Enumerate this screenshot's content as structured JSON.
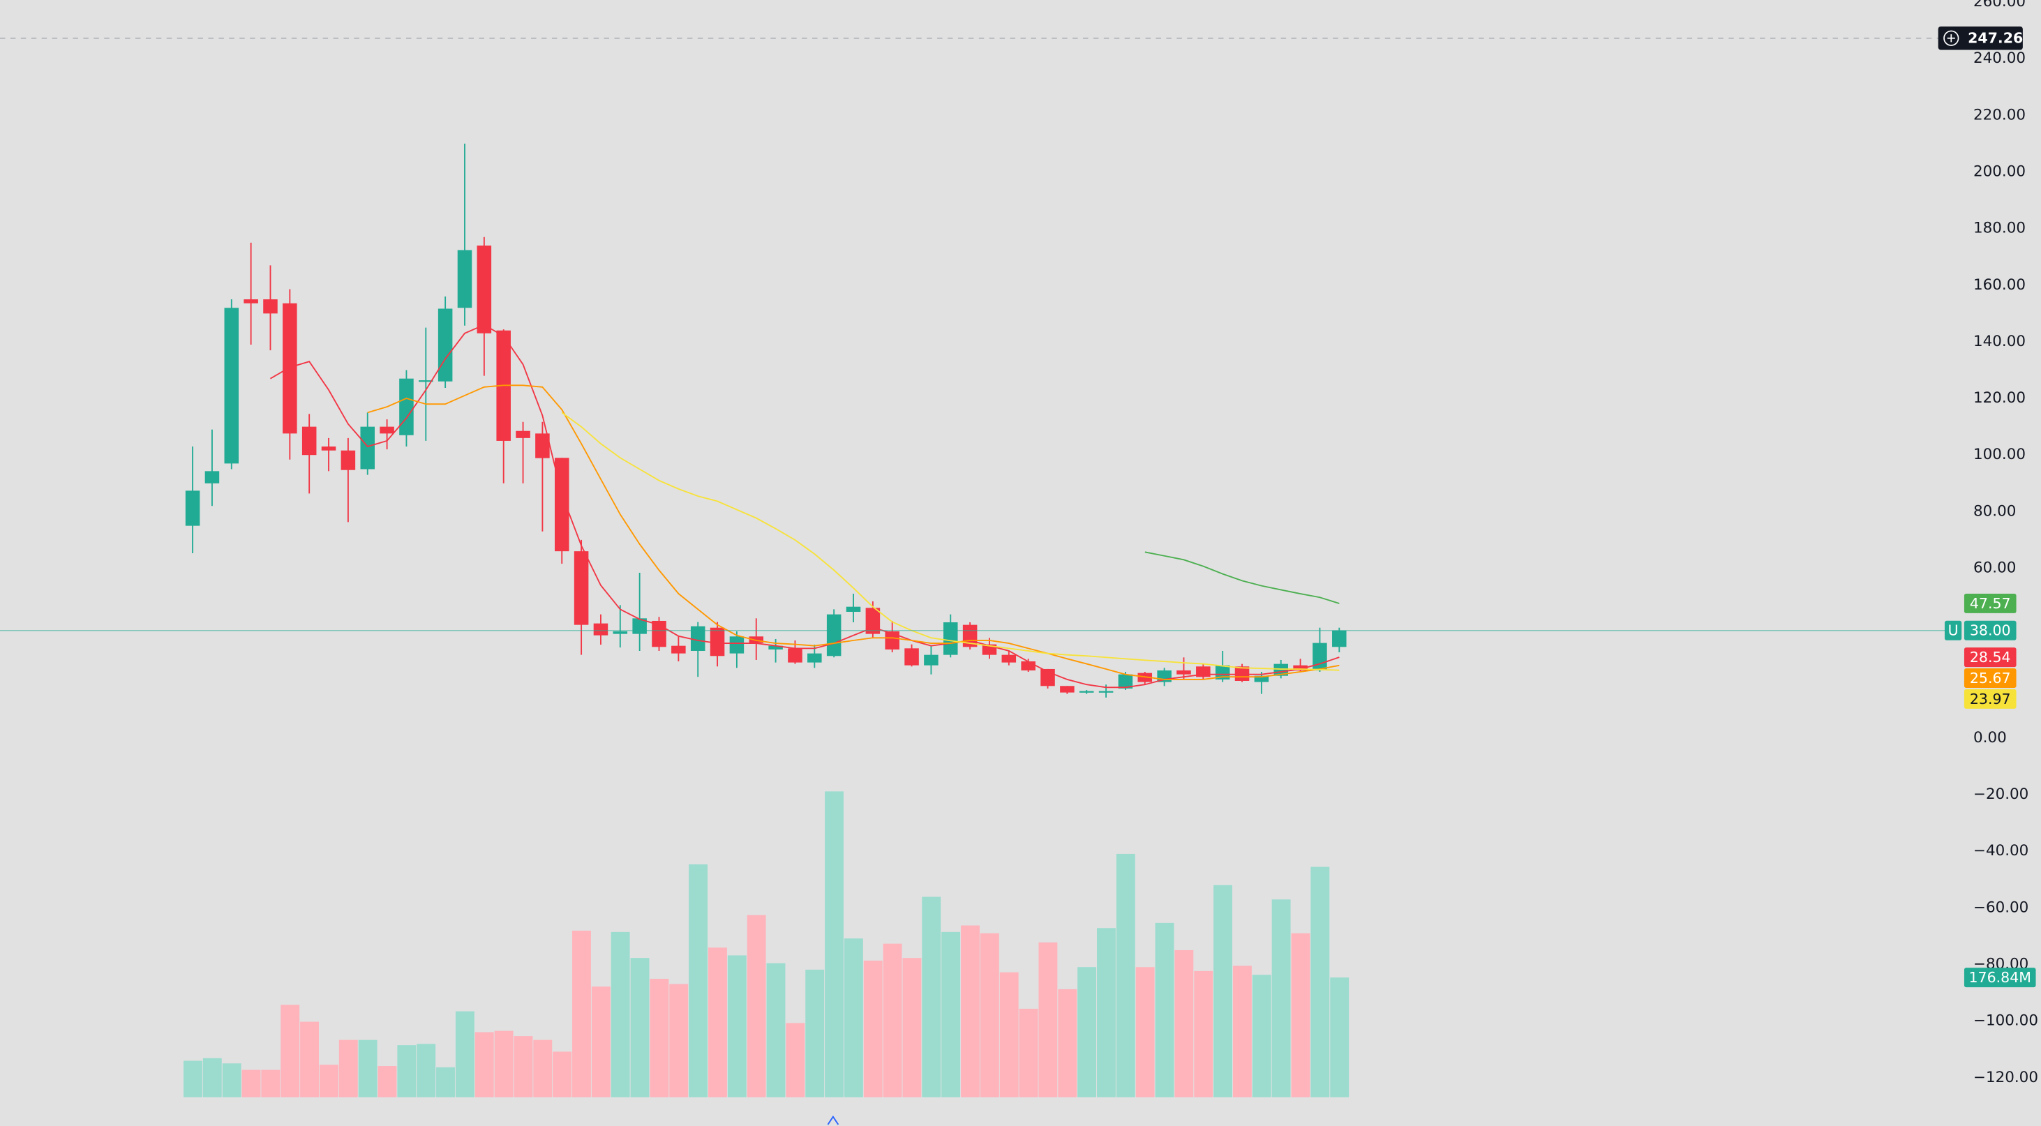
{
  "chart_data": {
    "type": "candlestick",
    "open": [
      75,
      90,
      97,
      155,
      155,
      153.6,
      110,
      103,
      101.6,
      95,
      110,
      107,
      126,
      126,
      152,
      174,
      144,
      108.5,
      107.6,
      99,
      66,
      40.5,
      36.8,
      36.8,
      41.4,
      32.6,
      30.8,
      39,
      29.9,
      35.9,
      31.3,
      31.7,
      26.7,
      29,
      44.6,
      46,
      37.7,
      31.7,
      25.7,
      29.4,
      40,
      33.1,
      29.4,
      27.1,
      24.4,
      18.4,
      16.1,
      16.1,
      17.5,
      23,
      19.8,
      23.9,
      25.3,
      20.7,
      25.3,
      19.8,
      22,
      25.7,
      23.9,
      32.2
    ],
    "high": [
      103,
      109,
      155,
      175,
      167,
      158.6,
      114.5,
      106,
      106,
      115,
      112.6,
      130,
      145,
      156,
      210,
      177,
      144.4,
      111.7,
      111.7,
      99,
      70,
      43.7,
      47,
      58.4,
      42.8,
      35.9,
      41,
      41,
      37.7,
      42.3,
      35,
      34.5,
      33,
      45.5,
      51,
      48.3,
      41.4,
      33.1,
      32.6,
      43.7,
      40.9,
      35.4,
      30.8,
      28,
      24.4,
      18.4,
      17,
      18.9,
      23.4,
      23.4,
      24.8,
      28.5,
      26.2,
      30.8,
      26.2,
      23.4,
      27.6,
      28,
      39,
      39
    ],
    "low": [
      65.3,
      82,
      95,
      139,
      137,
      98.4,
      86.4,
      94.3,
      76.3,
      93,
      102,
      103,
      105,
      123.7,
      145.7,
      128,
      90,
      90,
      73,
      61.6,
      29.4,
      33,
      32,
      30.8,
      30.8,
      27.1,
      21.6,
      25.3,
      24.8,
      27.6,
      26.7,
      26.2,
      24.8,
      28.5,
      40.9,
      35.4,
      30.3,
      25.3,
      22.5,
      28.5,
      31.3,
      28,
      25.7,
      23.4,
      17.5,
      15.6,
      15.6,
      14.3,
      17,
      18.9,
      18.4,
      20.7,
      20.7,
      19.8,
      19.8,
      15.6,
      21.1,
      23.4,
      23.4,
      30.3
    ],
    "close": [
      87.4,
      94.3,
      152,
      153.6,
      150,
      107.6,
      100,
      101.6,
      94.7,
      110,
      107.6,
      127,
      126.4,
      151.7,
      172.4,
      143,
      105,
      106,
      98.9,
      66,
      40,
      36.3,
      37.7,
      42.3,
      32.2,
      29.9,
      39.5,
      29,
      35.9,
      33.6,
      32.6,
      26.7,
      29.9,
      43.7,
      46.4,
      36.8,
      31.3,
      25.7,
      29.4,
      40.9,
      32.2,
      29.4,
      26.7,
      23.9,
      18.4,
      16.1,
      16.6,
      16.6,
      22.5,
      19.8,
      23.9,
      22.5,
      21.6,
      25.7,
      20.2,
      22,
      26.2,
      23.9,
      33.6,
      38
    ],
    "volume": [
      53.8,
      57.7,
      50,
      40.4,
      40.4,
      136.5,
      111.5,
      48,
      84.6,
      84.6,
      46.1,
      76.9,
      78.8,
      44.2,
      126.9,
      96.1,
      98,
      90.3,
      84.6,
      67.3,
      246,
      163.4,
      244.1,
      205.7,
      174.9,
      167.2,
      344,
      221,
      209.5,
      269,
      198,
      109.6,
      188.4,
      451.7,
      234.5,
      201.8,
      226.8,
      205.7,
      296,
      244.1,
      253.7,
      242.2,
      184.5,
      130.7,
      228.7,
      159.5,
      192.2,
      249.9,
      359.4,
      192.2,
      257.5,
      217.2,
      186.4,
      313.3,
      194.1,
      180.7,
      292.1,
      242.2,
      340.2,
      176.84
    ],
    "up_color": "#22ab94",
    "down_color": "#f23645",
    "volume_up_color": "#9bdccf",
    "volume_down_color": "#ffb3bb",
    "moving_averages": [
      {
        "color": "#f23645",
        "start": 4,
        "values": [
          127,
          131,
          133,
          123,
          111,
          103,
          105,
          113,
          123,
          134,
          143,
          146,
          142,
          132,
          114,
          86,
          68,
          54,
          45.5,
          42,
          40,
          36,
          34.5,
          33.5,
          33.5,
          33.5,
          32.6,
          31.7,
          31.7,
          33.5,
          36.3,
          39,
          37,
          34.5,
          32.6,
          33.5,
          34.5,
          32.6,
          30.8,
          27,
          23.4,
          20.7,
          18.9,
          17.9,
          17.9,
          18.9,
          20.7,
          21.6,
          22.5,
          22.5,
          22.5,
          22.5,
          23.4,
          24.4,
          26.2,
          28.54
        ]
      },
      {
        "color": "#ff9800",
        "start": 9,
        "values": [
          115,
          117,
          120,
          118,
          118,
          121,
          124,
          124.6,
          124.6,
          124,
          116,
          104,
          91.5,
          79,
          68.5,
          59.3,
          51,
          45.5,
          40,
          36.3,
          34.5,
          33.5,
          33.1,
          32.6,
          33.5,
          34.5,
          35.4,
          35.4,
          34.5,
          33.5,
          33.5,
          34.5,
          34.5,
          33.5,
          31.7,
          29.9,
          28,
          26.2,
          24.4,
          22.5,
          21.6,
          20.7,
          20.7,
          20.7,
          21.6,
          21.6,
          21.6,
          22.5,
          23.4,
          24.4,
          25.67
        ]
      },
      {
        "color": "#f7e23a",
        "start": 19,
        "values": [
          115,
          110,
          104,
          99,
          95,
          91,
          88,
          85.5,
          83.7,
          80.7,
          77.7,
          74,
          70,
          65,
          59.3,
          53,
          46.4,
          41,
          38,
          35.4,
          34.4,
          33.5,
          32.6,
          31.7,
          30.8,
          29.9,
          29.4,
          29,
          28.5,
          28,
          27.5,
          27.1,
          26.6,
          26.2,
          25.5,
          24.8,
          24.6,
          24.4,
          24.4,
          24.2,
          23.97
        ]
      },
      {
        "color": "#4caf50",
        "start": 49,
        "values": [
          65.7,
          64.4,
          63,
          60.7,
          58,
          55.6,
          53.8,
          52.4,
          51,
          49.7,
          47.57
        ]
      }
    ],
    "last_price": {
      "value": 38,
      "label": "38.00",
      "tag": "U"
    },
    "last_volume": {
      "value": 176.84,
      "label": "176.84M"
    },
    "crosshair": 247.26,
    "ylim": [
      -137,
      260.7
    ],
    "yticks": [
      {
        "value": 260,
        "label": "260.00"
      },
      {
        "value": 240,
        "label": "240.00"
      },
      {
        "value": 220,
        "label": "220.00"
      },
      {
        "value": 200,
        "label": "200.00"
      },
      {
        "value": 180,
        "label": "180.00"
      },
      {
        "value": 160,
        "label": "160.00"
      },
      {
        "value": 140,
        "label": "140.00"
      },
      {
        "value": 120,
        "label": "120.00"
      },
      {
        "value": 100,
        "label": "100.00"
      },
      {
        "value": 80,
        "label": "80.00"
      },
      {
        "value": 60,
        "label": "60.00"
      },
      {
        "value": 0,
        "label": "0.00"
      },
      {
        "value": -20,
        "label": "−20.00"
      },
      {
        "value": -40,
        "label": "−40.00"
      },
      {
        "value": -60,
        "label": "−60.00"
      },
      {
        "value": -80,
        "label": "−80.00"
      },
      {
        "value": -100,
        "label": "−100.00"
      },
      {
        "value": -120,
        "label": "−120.00"
      }
    ]
  }
}
